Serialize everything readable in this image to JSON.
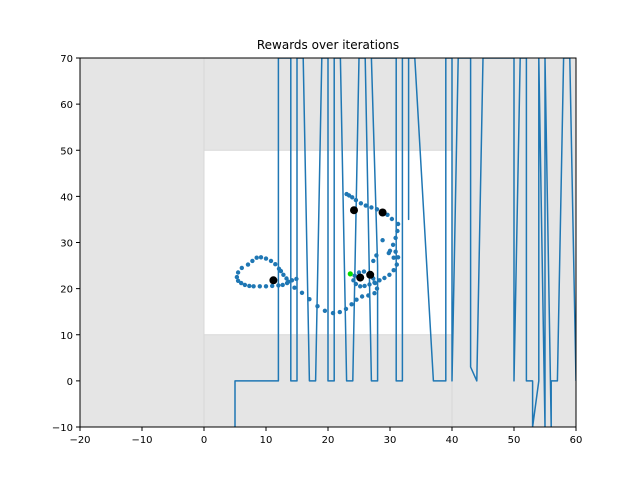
{
  "chart_data": {
    "type": "line",
    "title": "Rewards over iterations",
    "xlabel": "",
    "ylabel": "",
    "xlim": [
      -20,
      60
    ],
    "ylim": [
      -10,
      70
    ],
    "xticks": [
      -20,
      -10,
      0,
      10,
      20,
      30,
      40,
      50,
      60
    ],
    "yticks": [
      -10,
      0,
      10,
      20,
      30,
      40,
      50,
      60,
      70
    ],
    "grid": false,
    "legend": "none",
    "regions": [
      {
        "x": [
          -20,
          60
        ],
        "y": [
          -10,
          70
        ],
        "color": "#e5e5e5"
      },
      {
        "x": [
          0,
          40
        ],
        "y": [
          10,
          50
        ],
        "color": "#ffffff"
      }
    ],
    "series": [
      {
        "type": "line",
        "color": "#1f77b4",
        "points": [
          [
            5,
            -10
          ],
          [
            5,
            0
          ],
          [
            12,
            0
          ],
          [
            12,
            70
          ],
          [
            14,
            70
          ],
          [
            14,
            0
          ],
          [
            15,
            0
          ],
          [
            15,
            70
          ],
          [
            16,
            70
          ],
          [
            17,
            0
          ],
          [
            18,
            0
          ],
          [
            19,
            70
          ],
          [
            20,
            70
          ],
          [
            20,
            0
          ],
          [
            21,
            0
          ],
          [
            21,
            70
          ],
          [
            22,
            70
          ],
          [
            23,
            0
          ],
          [
            24,
            0
          ],
          [
            25,
            70
          ],
          [
            26,
            70
          ],
          [
            27,
            0
          ],
          [
            28,
            0
          ],
          [
            28,
            25
          ],
          [
            27,
            70
          ],
          [
            31,
            70
          ],
          [
            31,
            0
          ],
          [
            32,
            0
          ],
          [
            32,
            70
          ],
          [
            33,
            70
          ],
          [
            33,
            35
          ],
          [
            33,
            70
          ],
          [
            34,
            70
          ],
          [
            37,
            0
          ],
          [
            39,
            0
          ],
          [
            39,
            70
          ],
          [
            40,
            70
          ],
          [
            40,
            0
          ],
          [
            41,
            70
          ],
          [
            43,
            70
          ],
          [
            43,
            3
          ],
          [
            44,
            0
          ],
          [
            45,
            70
          ],
          [
            50,
            70
          ],
          [
            50,
            0
          ],
          [
            51,
            70
          ],
          [
            52,
            70
          ],
          [
            52,
            0
          ],
          [
            53,
            0
          ],
          [
            53,
            -10
          ],
          [
            54,
            0
          ],
          [
            54,
            70
          ],
          [
            55,
            -10
          ],
          [
            55,
            70
          ],
          [
            56,
            -10
          ],
          [
            56,
            0
          ],
          [
            57,
            0
          ],
          [
            58,
            70
          ],
          [
            59,
            70
          ],
          [
            59,
            70
          ],
          [
            60,
            0
          ]
        ]
      },
      {
        "type": "scatter",
        "color": "#1f77b4",
        "points": [
          [
            23,
            40.5
          ],
          [
            23.4,
            40.2
          ],
          [
            23.9,
            39.8
          ],
          [
            24.5,
            39.2
          ],
          [
            25.3,
            38.5
          ],
          [
            26.1,
            38
          ],
          [
            27,
            37.6
          ],
          [
            27.9,
            37.2
          ],
          [
            28.8,
            36.7
          ],
          [
            29.6,
            36
          ],
          [
            30.3,
            35.1
          ],
          [
            31.3,
            34
          ],
          [
            31.2,
            32.5
          ],
          [
            30.9,
            31
          ],
          [
            30.5,
            29.5
          ],
          [
            30.9,
            28
          ],
          [
            31.3,
            26.8
          ],
          [
            31.1,
            25.2
          ],
          [
            30.6,
            24
          ],
          [
            29.9,
            23
          ],
          [
            29.1,
            22.3
          ],
          [
            28.3,
            21.8
          ],
          [
            27.5,
            21.3
          ],
          [
            26.7,
            20.9
          ],
          [
            25.9,
            20.6
          ],
          [
            25.2,
            20.5
          ],
          [
            24.5,
            21
          ],
          [
            24.1,
            21.8
          ],
          [
            24.3,
            22.8
          ],
          [
            25,
            23.5
          ],
          [
            25.8,
            23.7
          ],
          [
            26.6,
            23.1
          ],
          [
            27.3,
            22.2
          ],
          [
            27.6,
            21.2
          ],
          [
            27.9,
            20
          ],
          [
            27.5,
            19
          ],
          [
            26.5,
            18.5
          ],
          [
            25.5,
            18.3
          ],
          [
            24.6,
            17.6
          ],
          [
            23.8,
            16.6
          ],
          [
            22.9,
            15.6
          ],
          [
            21.9,
            14.9
          ],
          [
            20.8,
            14.7
          ],
          [
            19.5,
            15.2
          ],
          [
            18.3,
            16.2
          ],
          [
            17,
            17.7
          ],
          [
            15.8,
            19.1
          ],
          [
            14.6,
            20.2
          ],
          [
            13.6,
            21.5
          ],
          [
            13.3,
            22.2
          ],
          [
            12.8,
            23
          ],
          [
            12.4,
            23.8
          ],
          [
            12.1,
            24.3
          ],
          [
            11.5,
            25.3
          ],
          [
            10.8,
            26
          ],
          [
            10,
            26.5
          ],
          [
            9.2,
            26.8
          ],
          [
            8.5,
            26.7
          ],
          [
            7.8,
            26
          ],
          [
            7.1,
            25.2
          ],
          [
            6.1,
            24.5
          ],
          [
            5.5,
            23.5
          ],
          [
            5.3,
            22.5
          ],
          [
            5.5,
            21.7
          ],
          [
            6,
            21.2
          ],
          [
            6.6,
            20.8
          ],
          [
            7.3,
            20.6
          ],
          [
            8,
            20.5
          ],
          [
            9,
            20.5
          ],
          [
            10,
            20.5
          ],
          [
            11,
            20.6
          ],
          [
            12,
            20.7
          ],
          [
            12.7,
            20.8
          ],
          [
            13.4,
            21.2
          ],
          [
            14.2,
            21.8
          ],
          [
            14.9,
            22.1
          ],
          [
            28.8,
            30.5
          ],
          [
            30,
            28.2
          ],
          [
            30.6,
            26.7
          ],
          [
            29.8,
            27.7
          ],
          [
            27.8,
            27.2
          ],
          [
            27.3,
            26
          ]
        ]
      },
      {
        "type": "scatter",
        "color": "#000000",
        "points": [
          [
            24.2,
            37.0
          ],
          [
            28.8,
            36.5
          ],
          [
            11.2,
            21.8
          ],
          [
            25.2,
            22.4
          ],
          [
            26.8,
            23.0
          ]
        ]
      },
      {
        "type": "scatter",
        "color": "#00dd00",
        "points": [
          [
            23.6,
            23.2
          ]
        ]
      }
    ]
  }
}
